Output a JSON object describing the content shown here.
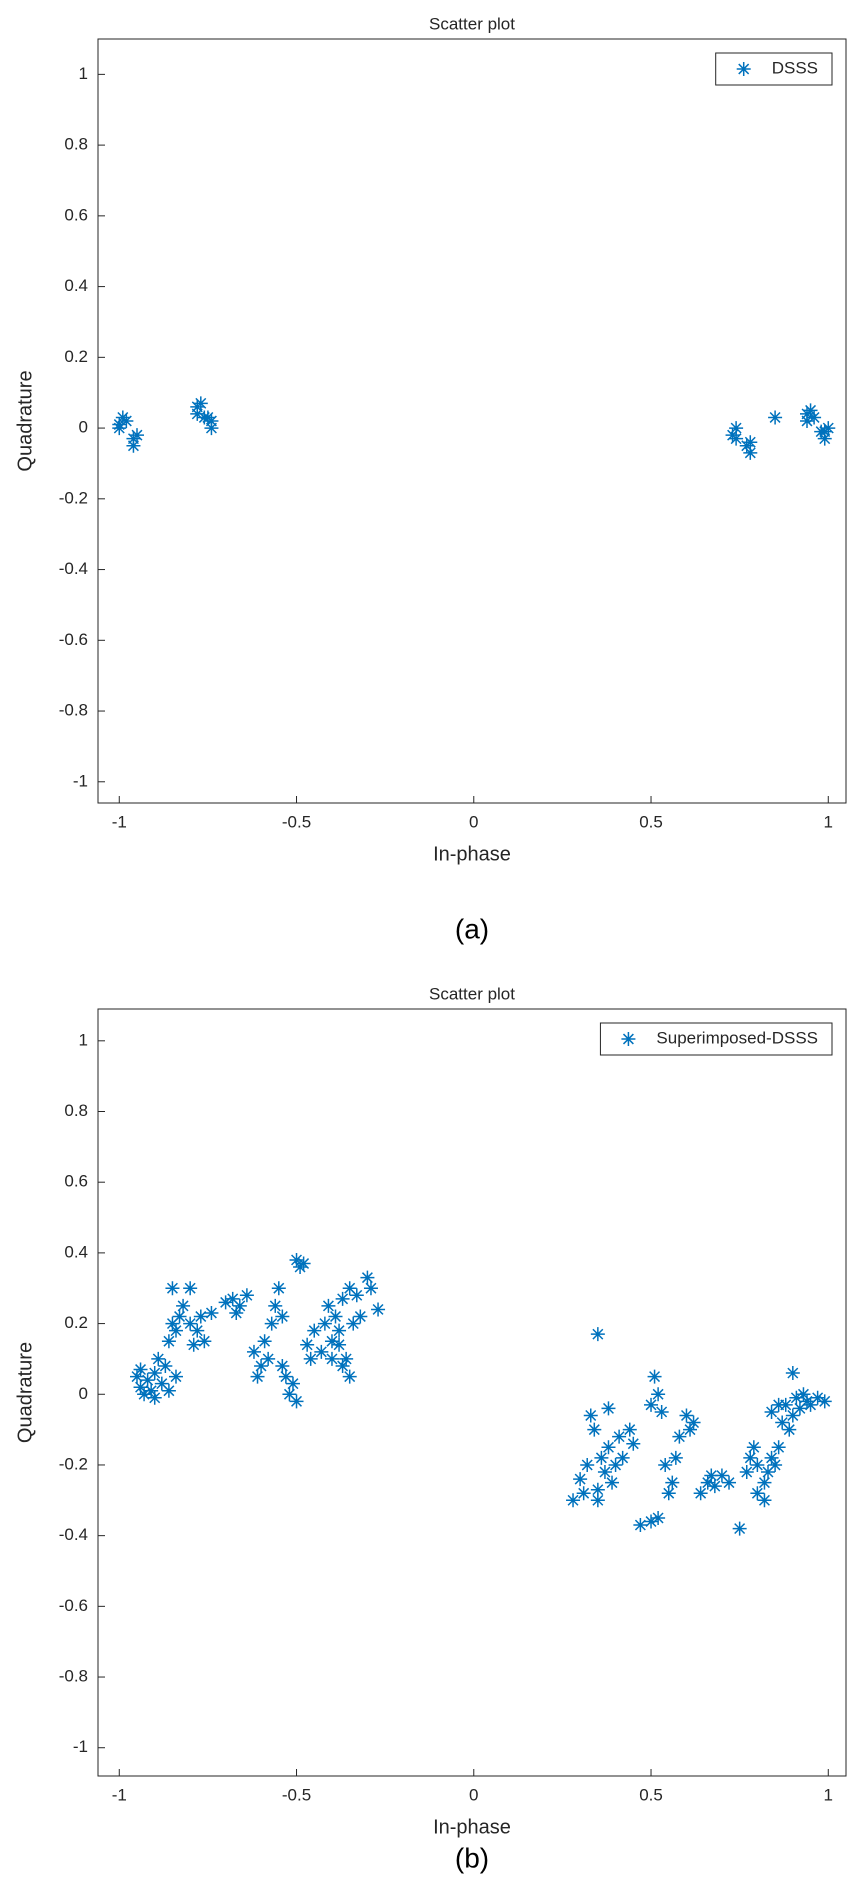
{
  "chart_data": [
    {
      "type": "scatter",
      "title": "Scatter plot",
      "xlabel": "In-phase",
      "ylabel": "Quadrature",
      "caption": "(a)",
      "xlim": [
        -1.06,
        1.05
      ],
      "ylim": [
        -1.06,
        1.1
      ],
      "xticks": [
        -1,
        -0.5,
        0,
        0.5,
        1
      ],
      "yticks": [
        -1,
        -0.8,
        -0.6,
        -0.4,
        -0.2,
        0,
        0.2,
        0.4,
        0.6,
        0.8,
        1
      ],
      "legend": "top right",
      "series": [
        {
          "name": "DSSS",
          "color": "#0072bd",
          "x": [
            -1,
            -0.99,
            -0.98,
            -1,
            -0.96,
            -0.95,
            -0.96,
            -0.78,
            -0.77,
            -0.78,
            -0.76,
            -0.74,
            -0.74,
            -0.75,
            0.73,
            0.74,
            0.74,
            0.77,
            0.78,
            0.78,
            0.85,
            0.94,
            0.95,
            0.96,
            0.94,
            0.98,
            0.99,
            1,
            0.99
          ],
          "values": [
            0,
            0.03,
            0.02,
            0.01,
            -0.03,
            -0.02,
            -0.05,
            0.06,
            0.07,
            0.04,
            0.03,
            0.02,
            0,
            0.03,
            -0.02,
            0,
            -0.03,
            -0.05,
            -0.07,
            -0.04,
            0.03,
            0.02,
            0.05,
            0.03,
            0.04,
            -0.01,
            -0.03,
            0,
            -0.01
          ]
        }
      ]
    },
    {
      "type": "scatter",
      "title": "Scatter plot",
      "xlabel": "In-phase",
      "ylabel": "Quadrature",
      "caption": "(b)",
      "xlim": [
        -1.06,
        1.05
      ],
      "ylim": [
        -1.08,
        1.09
      ],
      "xticks": [
        -1,
        -0.5,
        0,
        0.5,
        1
      ],
      "yticks": [
        -1,
        -0.8,
        -0.6,
        -0.4,
        -0.2,
        0,
        0.2,
        0.4,
        0.6,
        0.8,
        1
      ],
      "legend": "top right",
      "series": [
        {
          "name": "Superimposed-DSSS",
          "color": "#0072bd",
          "x": [
            -0.95,
            -0.94,
            -0.93,
            -0.92,
            -0.91,
            -0.9,
            -0.94,
            -0.9,
            -0.88,
            -0.87,
            -0.89,
            -0.86,
            -0.85,
            -0.84,
            -0.83,
            -0.85,
            -0.8,
            -0.82,
            -0.8,
            -0.78,
            -0.77,
            -0.76,
            -0.79,
            -0.84,
            -0.86,
            -0.74,
            -0.7,
            -0.68,
            -0.66,
            -0.67,
            -0.64,
            -0.62,
            -0.6,
            -0.61,
            -0.58,
            -0.59,
            -0.57,
            -0.56,
            -0.55,
            -0.54,
            -0.53,
            -0.52,
            -0.5,
            -0.51,
            -0.54,
            -0.5,
            -0.49,
            -0.48,
            -0.47,
            -0.46,
            -0.45,
            -0.43,
            -0.42,
            -0.41,
            -0.4,
            -0.39,
            -0.38,
            -0.37,
            -0.36,
            -0.35,
            -0.37,
            -0.34,
            -0.33,
            -0.32,
            -0.3,
            -0.29,
            -0.27,
            -0.35,
            -0.4,
            -0.38,
            0.95,
            0.94,
            0.93,
            0.92,
            0.91,
            0.9,
            0.97,
            0.99,
            0.88,
            0.87,
            0.89,
            0.86,
            0.85,
            0.84,
            0.83,
            0.82,
            0.8,
            0.82,
            0.8,
            0.78,
            0.77,
            0.79,
            0.84,
            0.86,
            0.7,
            0.68,
            0.66,
            0.67,
            0.64,
            0.62,
            0.6,
            0.61,
            0.58,
            0.57,
            0.56,
            0.55,
            0.54,
            0.53,
            0.52,
            0.51,
            0.5,
            0.52,
            0.5,
            0.47,
            0.45,
            0.44,
            0.42,
            0.41,
            0.4,
            0.39,
            0.38,
            0.37,
            0.36,
            0.35,
            0.34,
            0.33,
            0.35,
            0.32,
            0.31,
            0.28,
            0.3,
            0.38,
            0.35,
            0.9,
            0.75,
            0.72
          ],
          "values": [
            0.05,
            0.02,
            0,
            0.04,
            0.01,
            0.06,
            0.07,
            -0.01,
            0.03,
            0.08,
            0.1,
            0.15,
            0.2,
            0.18,
            0.22,
            0.3,
            0.3,
            0.25,
            0.2,
            0.18,
            0.22,
            0.15,
            0.14,
            0.05,
            0.01,
            0.23,
            0.26,
            0.27,
            0.25,
            0.23,
            0.28,
            0.12,
            0.08,
            0.05,
            0.1,
            0.15,
            0.2,
            0.25,
            0.3,
            0.22,
            0.05,
            0,
            -0.02,
            0.03,
            0.08,
            0.38,
            0.36,
            0.37,
            0.14,
            0.1,
            0.18,
            0.12,
            0.2,
            0.25,
            0.15,
            0.22,
            0.18,
            0.27,
            0.1,
            0.05,
            0.08,
            0.2,
            0.28,
            0.22,
            0.33,
            0.3,
            0.24,
            0.3,
            0.1,
            0.14,
            -0.03,
            -0.02,
            0,
            -0.04,
            -0.01,
            -0.06,
            -0.01,
            -0.02,
            -0.03,
            -0.08,
            -0.1,
            -0.15,
            -0.2,
            -0.18,
            -0.22,
            -0.3,
            -0.28,
            -0.25,
            -0.2,
            -0.18,
            -0.22,
            -0.15,
            -0.05,
            -0.03,
            -0.23,
            -0.26,
            -0.25,
            -0.23,
            -0.28,
            -0.08,
            -0.06,
            -0.1,
            -0.12,
            -0.18,
            -0.25,
            -0.28,
            -0.2,
            -0.05,
            0,
            0.05,
            -0.03,
            -0.35,
            -0.36,
            -0.37,
            -0.14,
            -0.1,
            -0.18,
            -0.12,
            -0.2,
            -0.25,
            -0.15,
            -0.22,
            -0.18,
            -0.27,
            -0.1,
            -0.06,
            -0.3,
            -0.2,
            -0.28,
            -0.3,
            -0.24,
            -0.04,
            0.17,
            0.06,
            -0.38,
            -0.25
          ]
        }
      ]
    }
  ]
}
